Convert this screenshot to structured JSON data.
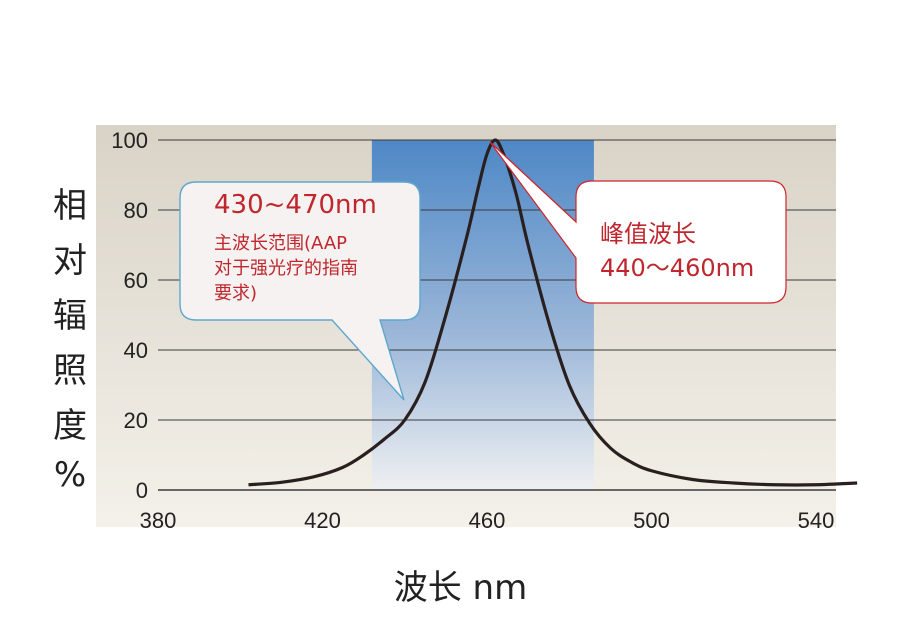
{
  "chart_data": {
    "type": "line",
    "title": "",
    "xlabel": "波长  nm",
    "ylabel_chars": [
      "相",
      "对",
      "辐",
      "照",
      "度",
      "%"
    ],
    "x_ticks": [
      380,
      420,
      460,
      500,
      540
    ],
    "y_ticks": [
      0,
      20,
      40,
      60,
      80,
      100
    ],
    "xlim": [
      380,
      550
    ],
    "ylim": [
      0,
      100
    ],
    "grid": true,
    "highlight_band": [
      432,
      486
    ],
    "series": [
      {
        "color": "#2a1f1f",
        "points": [
          [
            402,
            1.5
          ],
          [
            410,
            2.2
          ],
          [
            418,
            3.8
          ],
          [
            425,
            6.5
          ],
          [
            430,
            10
          ],
          [
            435,
            14.5
          ],
          [
            440,
            20
          ],
          [
            445,
            31
          ],
          [
            450,
            50
          ],
          [
            455,
            72
          ],
          [
            458,
            87
          ],
          [
            460,
            96
          ],
          [
            462,
            100
          ],
          [
            464,
            96
          ],
          [
            467,
            85
          ],
          [
            470,
            70
          ],
          [
            475,
            48
          ],
          [
            480,
            30
          ],
          [
            485,
            19
          ],
          [
            490,
            12
          ],
          [
            495,
            8
          ],
          [
            500,
            5.5
          ],
          [
            510,
            3
          ],
          [
            520,
            2
          ],
          [
            530,
            1.5
          ],
          [
            540,
            1.5
          ],
          [
            550,
            2
          ]
        ]
      }
    ],
    "annotations": [
      {
        "lines": [
          "430~470nm"
        ],
        "sub_lines": [
          "主波长范围(AAP",
          "对于强光疗的指南",
          "要求)"
        ]
      },
      {
        "lines": [
          "峰值波长",
          "440〜460nm"
        ]
      }
    ]
  },
  "colors": {
    "plot_bg": "#ebe6dc",
    "band_top": "#4e88c6",
    "band_bottom": "#e8ecf2",
    "callout_text": "#c0262d"
  }
}
